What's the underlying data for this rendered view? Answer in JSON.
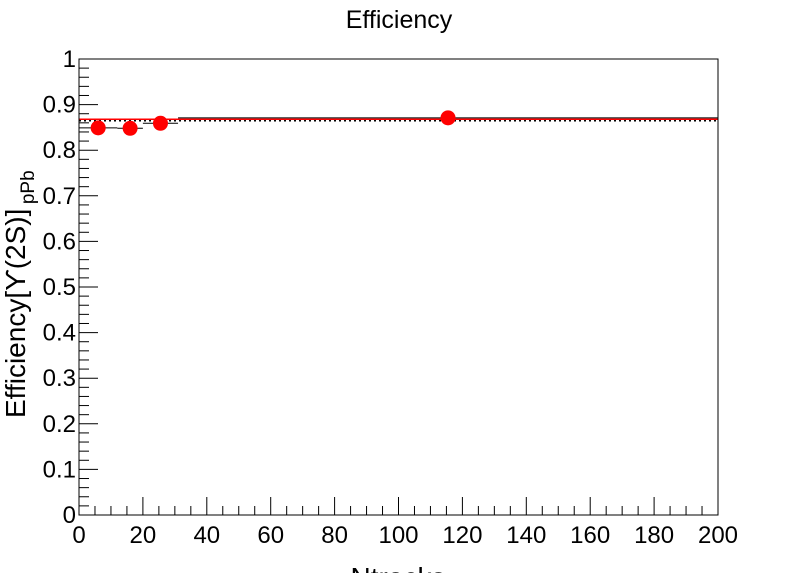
{
  "chart_data": {
    "type": "scatter",
    "title": "Efficiency",
    "xlabel": "Ntracks",
    "ylabel": {
      "main": "Efficiency[ϒ(2S)]",
      "subscript": "pPb"
    },
    "xlim": [
      0,
      200
    ],
    "ylim": [
      0,
      1
    ],
    "x_ticks": [
      "0",
      "20",
      "40",
      "60",
      "80",
      "100",
      "120",
      "140",
      "160",
      "180",
      "200"
    ],
    "y_ticks": [
      "0",
      "0.1",
      "0.2",
      "0.3",
      "0.4",
      "0.5",
      "0.6",
      "0.7",
      "0.8",
      "0.9",
      "1"
    ],
    "grid": false,
    "legend": "none",
    "series": [
      {
        "marker": "circle",
        "color": "#ff0000",
        "points": [
          {
            "x": 6,
            "y": 0.849,
            "x_low": 0,
            "x_high": 12,
            "y_err": 0.012
          },
          {
            "x": 16,
            "y": 0.848,
            "x_low": 12,
            "x_high": 20,
            "y_err": 0.008
          },
          {
            "x": 25.5,
            "y": 0.859,
            "x_low": 20,
            "x_high": 31,
            "y_err": 0.008
          },
          {
            "x": 115.5,
            "y": 0.871,
            "x_low": 31,
            "x_high": 200,
            "y_err": 0.005
          }
        ]
      }
    ],
    "reference_lines": [
      {
        "style": "dotted",
        "color": "#000000",
        "y": 0.865
      },
      {
        "style": "solid",
        "color": "#ff0000",
        "y": 0.868
      }
    ]
  }
}
